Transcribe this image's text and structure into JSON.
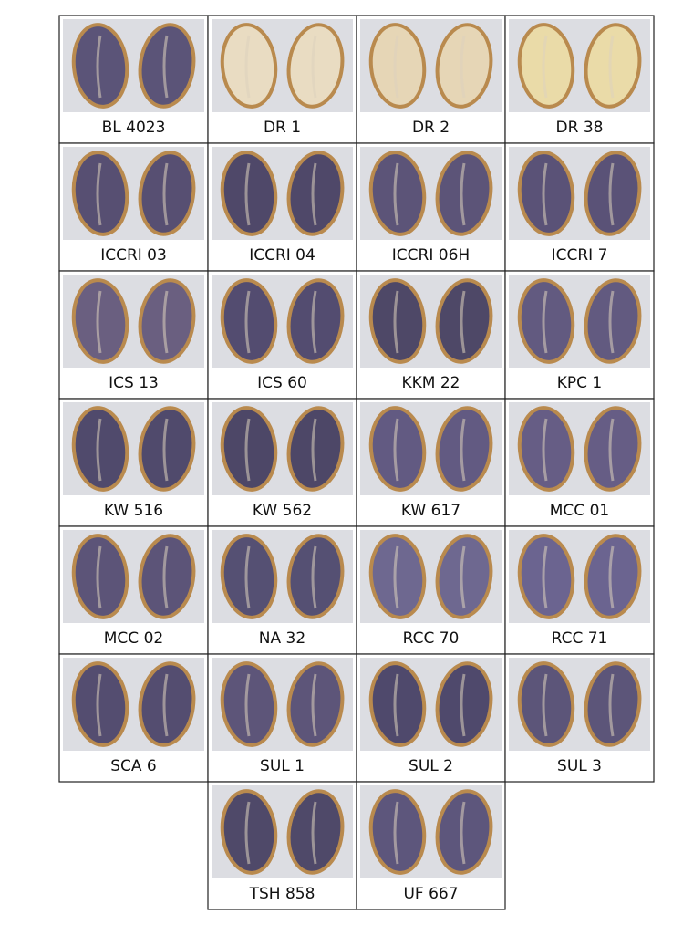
{
  "grid": {
    "rows": [
      [
        {
          "label": "BL 4023",
          "color": "#5b5478"
        },
        {
          "label": "DR 1",
          "color": "#e9dcc2"
        },
        {
          "label": "DR 2",
          "color": "#e6d6b6"
        },
        {
          "label": "DR 38",
          "color": "#eadba8"
        }
      ],
      [
        {
          "label": "ICCRI 03",
          "color": "#574f72"
        },
        {
          "label": "ICCRI 04",
          "color": "#4f4869"
        },
        {
          "label": "ICCRI 06H",
          "color": "#5c5478"
        },
        {
          "label": "ICCRI 7",
          "color": "#5a5277"
        }
      ],
      [
        {
          "label": "ICS 13",
          "color": "#6a5f80"
        },
        {
          "label": "ICS 60",
          "color": "#534c70"
        },
        {
          "label": "KKM 22",
          "color": "#4e4867"
        },
        {
          "label": "KPC 1",
          "color": "#625a80"
        }
      ],
      [
        {
          "label": "KW 516",
          "color": "#504a6c"
        },
        {
          "label": "KW 562",
          "color": "#4d4767"
        },
        {
          "label": "KW 617",
          "color": "#625a82"
        },
        {
          "label": "MCC 01",
          "color": "#665d85"
        }
      ],
      [
        {
          "label": "MCC 02",
          "color": "#5c5478"
        },
        {
          "label": "NA 32",
          "color": "#555073"
        },
        {
          "label": "RCC 70",
          "color": "#6e6890"
        },
        {
          "label": "RCC 71",
          "color": "#6b6490"
        }
      ],
      [
        {
          "label": "SCA 6",
          "color": "#544d70"
        },
        {
          "label": "SUL 1",
          "color": "#5d5579"
        },
        {
          "label": "SUL 2",
          "color": "#4f496c"
        },
        {
          "label": "SUL 3",
          "color": "#5c5579"
        }
      ],
      [
        {
          "label": "TSH 858",
          "color": "#4f4969"
        },
        {
          "label": "UF 667",
          "color": "#5d567c"
        }
      ]
    ]
  }
}
